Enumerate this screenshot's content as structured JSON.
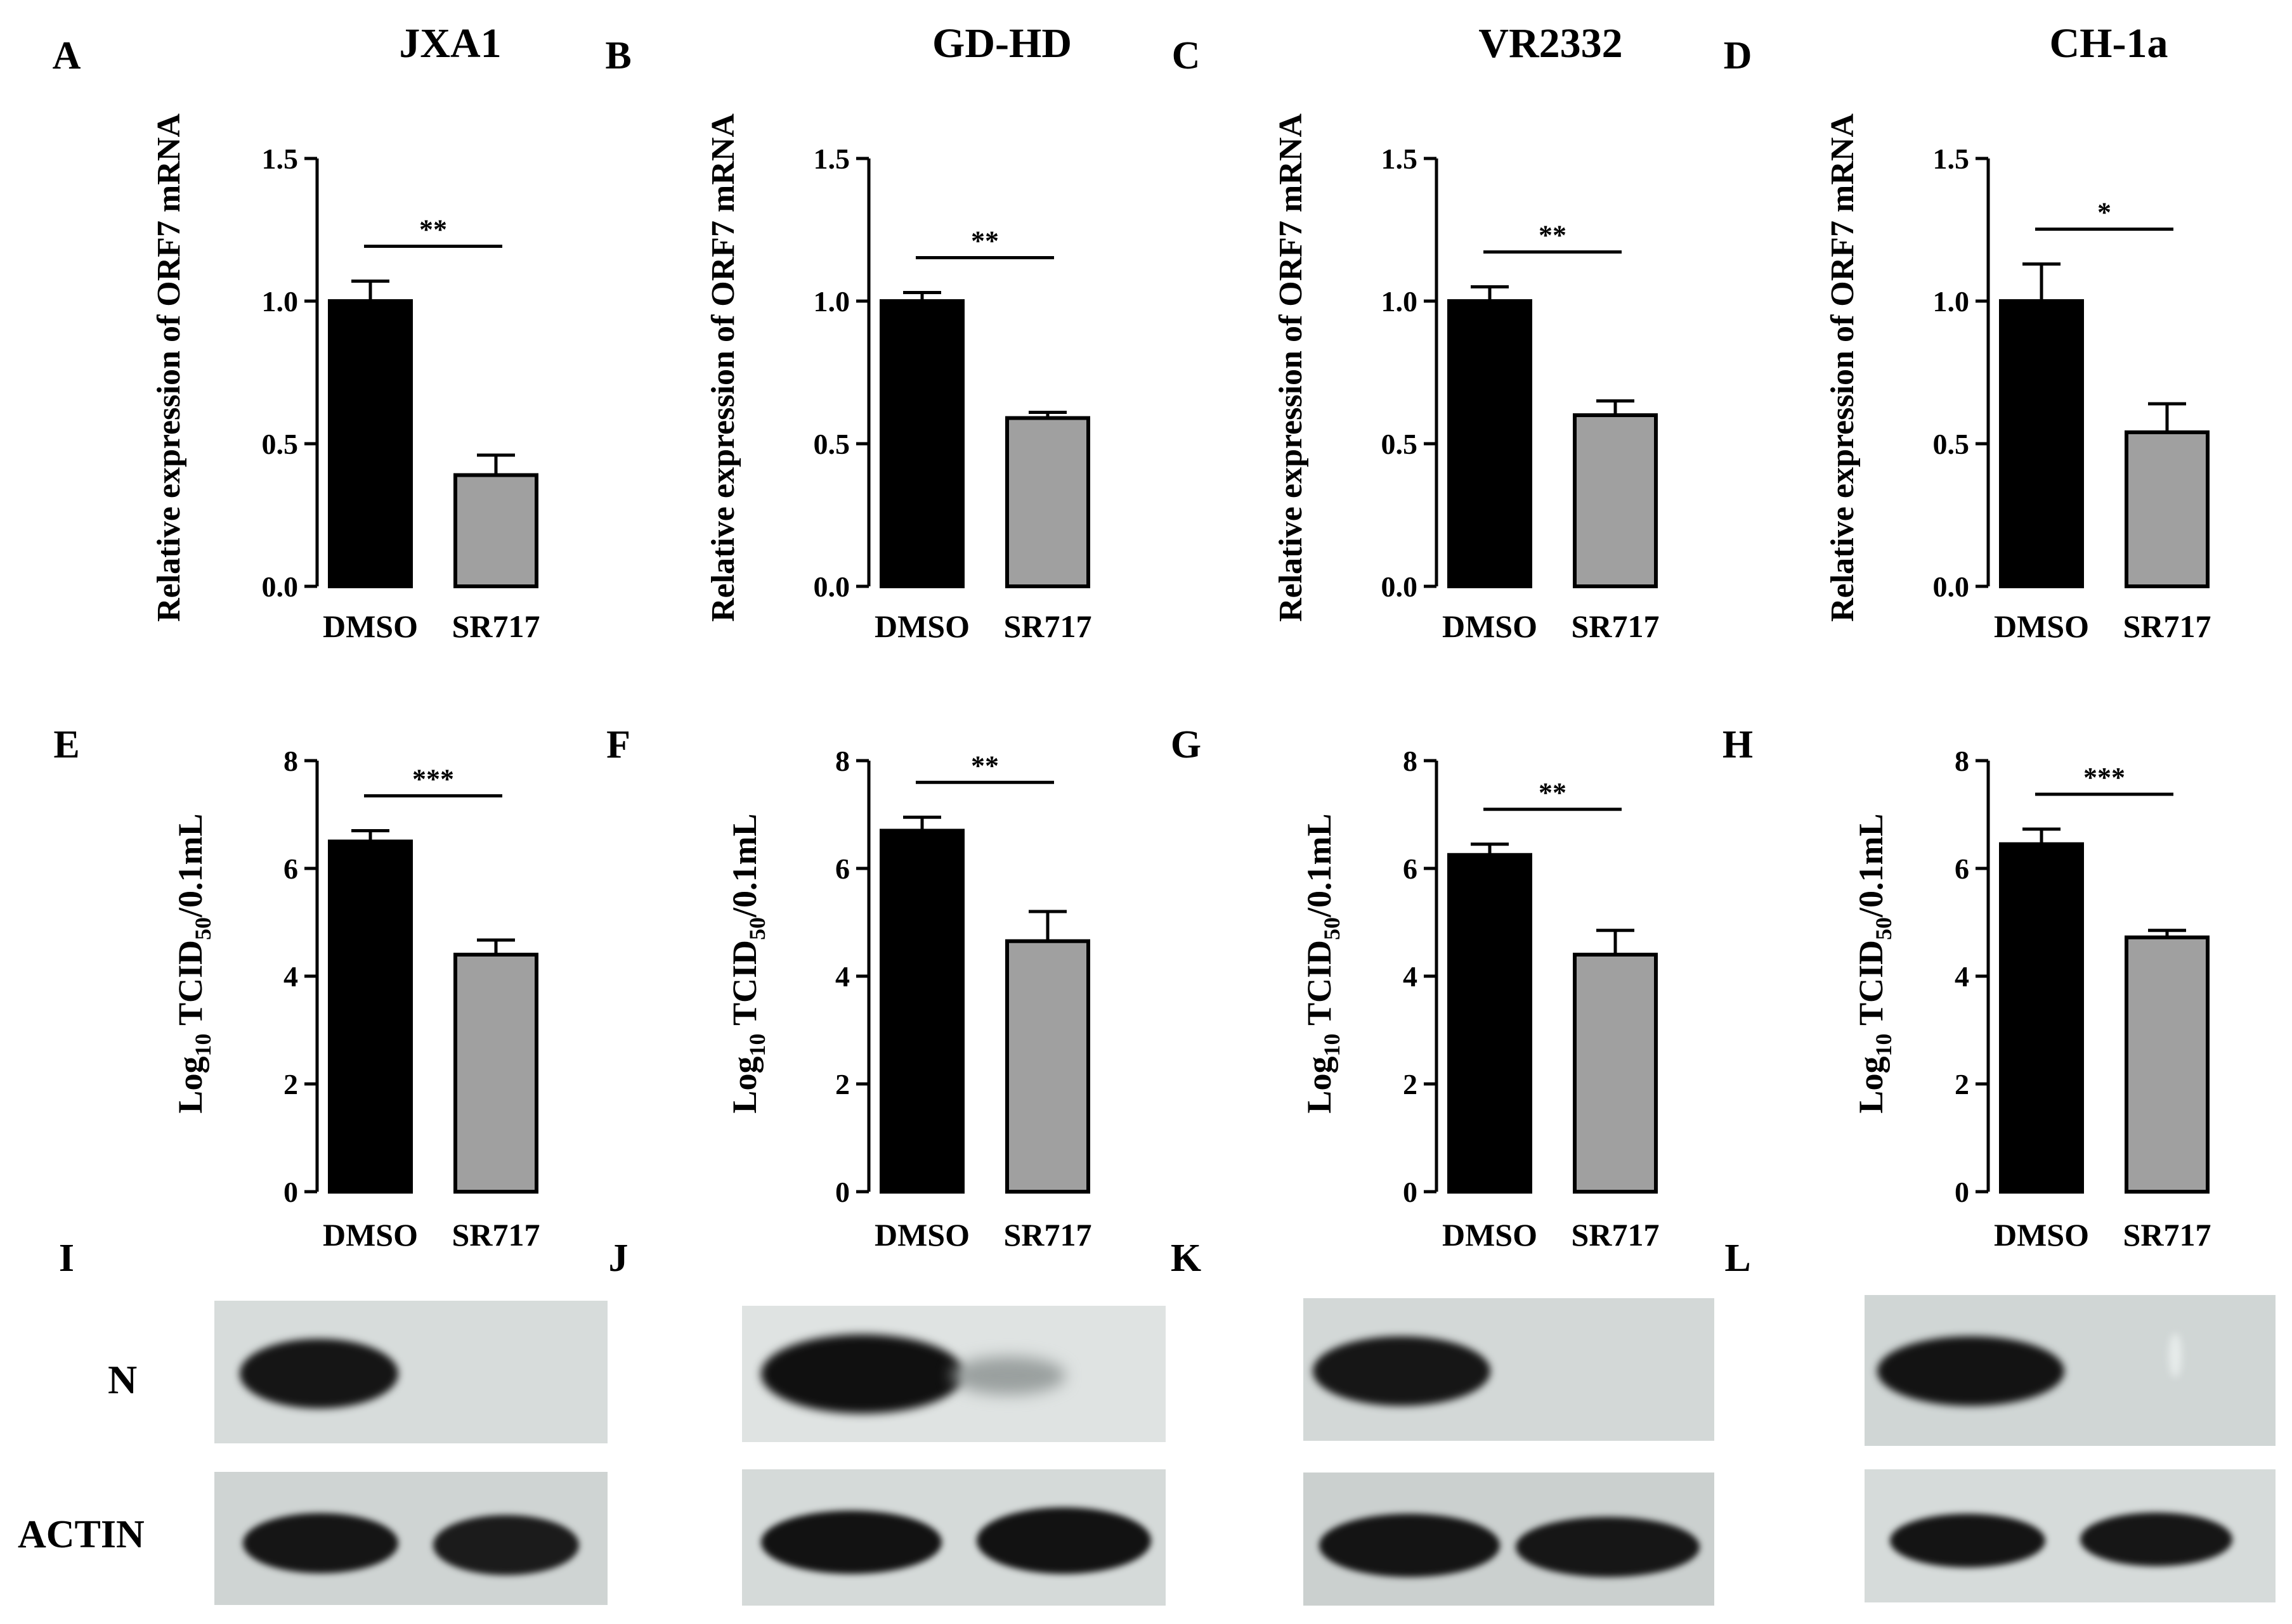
{
  "colors": {
    "dmso": "#000000",
    "sr717": "#a0a0a0",
    "axis": "#000000"
  },
  "blot_labels": {
    "n": "N",
    "actin": "ACTIN"
  },
  "chart_data": [
    {
      "panel": "A",
      "type": "bar",
      "title": "JXA1",
      "ylabel": "Relative expression of ORF7 mRNA",
      "xlabel": "",
      "ylim": [
        0,
        1.5
      ],
      "yticks": [
        "0.0",
        "0.5",
        "1.0",
        "1.5"
      ],
      "ytick_values": [
        0,
        0.5,
        1.0,
        1.5
      ],
      "categories": [
        "DMSO",
        "SR717"
      ],
      "values": [
        1.0,
        0.39
      ],
      "errors": [
        0.07,
        0.07
      ],
      "significance": "**"
    },
    {
      "panel": "B",
      "type": "bar",
      "title": "GD-HD",
      "ylabel": "Relative expression of ORF7 mRNA",
      "xlabel": "",
      "ylim": [
        0,
        1.5
      ],
      "yticks": [
        "0.0",
        "0.5",
        "1.0",
        "1.5"
      ],
      "ytick_values": [
        0,
        0.5,
        1.0,
        1.5
      ],
      "categories": [
        "DMSO",
        "SR717"
      ],
      "values": [
        1.0,
        0.59
      ],
      "errors": [
        0.03,
        0.02
      ],
      "significance": "**"
    },
    {
      "panel": "C",
      "type": "bar",
      "title": "VR2332",
      "ylabel": "Relative expression of ORF7 mRNA",
      "xlabel": "",
      "ylim": [
        0,
        1.5
      ],
      "yticks": [
        "0.0",
        "0.5",
        "1.0",
        "1.5"
      ],
      "ytick_values": [
        0,
        0.5,
        1.0,
        1.5
      ],
      "categories": [
        "DMSO",
        "SR717"
      ],
      "values": [
        1.0,
        0.6
      ],
      "errors": [
        0.05,
        0.05
      ],
      "significance": "**"
    },
    {
      "panel": "D",
      "type": "bar",
      "title": "CH-1a",
      "ylabel": "Relative expression of ORF7 mRNA",
      "xlabel": "",
      "ylim": [
        0,
        1.5
      ],
      "yticks": [
        "0.0",
        "0.5",
        "1.0",
        "1.5"
      ],
      "ytick_values": [
        0,
        0.5,
        1.0,
        1.5
      ],
      "categories": [
        "DMSO",
        "SR717"
      ],
      "values": [
        1.0,
        0.54
      ],
      "errors": [
        0.13,
        0.1
      ],
      "significance": "*"
    },
    {
      "panel": "E",
      "type": "bar",
      "title": "",
      "ylabel": "Log10 TCID50/0.1mL",
      "ylabel_parts": [
        "Log",
        "10",
        " TCID",
        "50",
        "/0.1mL"
      ],
      "xlabel": "",
      "ylim": [
        0,
        8
      ],
      "yticks": [
        "0",
        "2",
        "4",
        "6",
        "8"
      ],
      "ytick_values": [
        0,
        2,
        4,
        6,
        8
      ],
      "categories": [
        "DMSO",
        "SR717"
      ],
      "values": [
        6.5,
        4.4
      ],
      "errors": [
        0.2,
        0.27
      ],
      "significance": "***"
    },
    {
      "panel": "F",
      "type": "bar",
      "title": "",
      "ylabel": "Log10 TCID50/0.1mL",
      "ylabel_parts": [
        "Log",
        "10",
        " TCID",
        "50",
        "/0.1mL"
      ],
      "xlabel": "",
      "ylim": [
        0,
        8
      ],
      "yticks": [
        "0",
        "2",
        "4",
        "6",
        "8"
      ],
      "ytick_values": [
        0,
        2,
        4,
        6,
        8
      ],
      "categories": [
        "DMSO",
        "SR717"
      ],
      "values": [
        6.7,
        4.65
      ],
      "errors": [
        0.25,
        0.55
      ],
      "significance": "**"
    },
    {
      "panel": "G",
      "type": "bar",
      "title": "",
      "ylabel": "Log10 TCID50/0.1mL",
      "ylabel_parts": [
        "Log",
        "10",
        " TCID",
        "50",
        "/0.1mL"
      ],
      "xlabel": "",
      "ylim": [
        0,
        8
      ],
      "yticks": [
        "0",
        "2",
        "4",
        "6",
        "8"
      ],
      "ytick_values": [
        0,
        2,
        4,
        6,
        8
      ],
      "categories": [
        "DMSO",
        "SR717"
      ],
      "values": [
        6.25,
        4.4
      ],
      "errors": [
        0.2,
        0.45
      ],
      "significance": "**"
    },
    {
      "panel": "H",
      "type": "bar",
      "title": "",
      "ylabel": "Log10 TCID50/0.1mL",
      "ylabel_parts": [
        "Log",
        "10",
        " TCID",
        "50",
        "/0.1mL"
      ],
      "xlabel": "",
      "ylim": [
        0,
        8
      ],
      "yticks": [
        "0",
        "2",
        "4",
        "6",
        "8"
      ],
      "ytick_values": [
        0,
        2,
        4,
        6,
        8
      ],
      "categories": [
        "DMSO",
        "SR717"
      ],
      "values": [
        6.45,
        4.72
      ],
      "errors": [
        0.28,
        0.13
      ],
      "significance": "***"
    }
  ],
  "blots": [
    {
      "panel": "I",
      "strain": "JXA1"
    },
    {
      "panel": "J",
      "strain": "GD-HD"
    },
    {
      "panel": "K",
      "strain": "VR2332"
    },
    {
      "panel": "L",
      "strain": "CH-1a"
    }
  ]
}
